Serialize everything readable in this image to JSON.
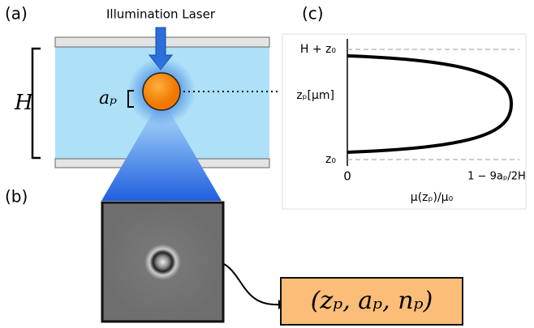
{
  "panels": {
    "a": "(a)",
    "b": "(b)",
    "c": "(c)"
  },
  "schematic": {
    "laser_label": "Illumination Laser",
    "height_label": "H",
    "radius_label": "aₚ"
  },
  "plot": {
    "y_top_label": "H + z₀",
    "y_axis_label": "zₚ[μm]",
    "y_bottom_label": "z₀",
    "x_left_label": "0",
    "x_right_label": "1 − 9aₚ/2H",
    "x_axis_label": "μ(zₚ)/μ₀"
  },
  "output": "(zₚ, aₚ, nₚ)"
}
